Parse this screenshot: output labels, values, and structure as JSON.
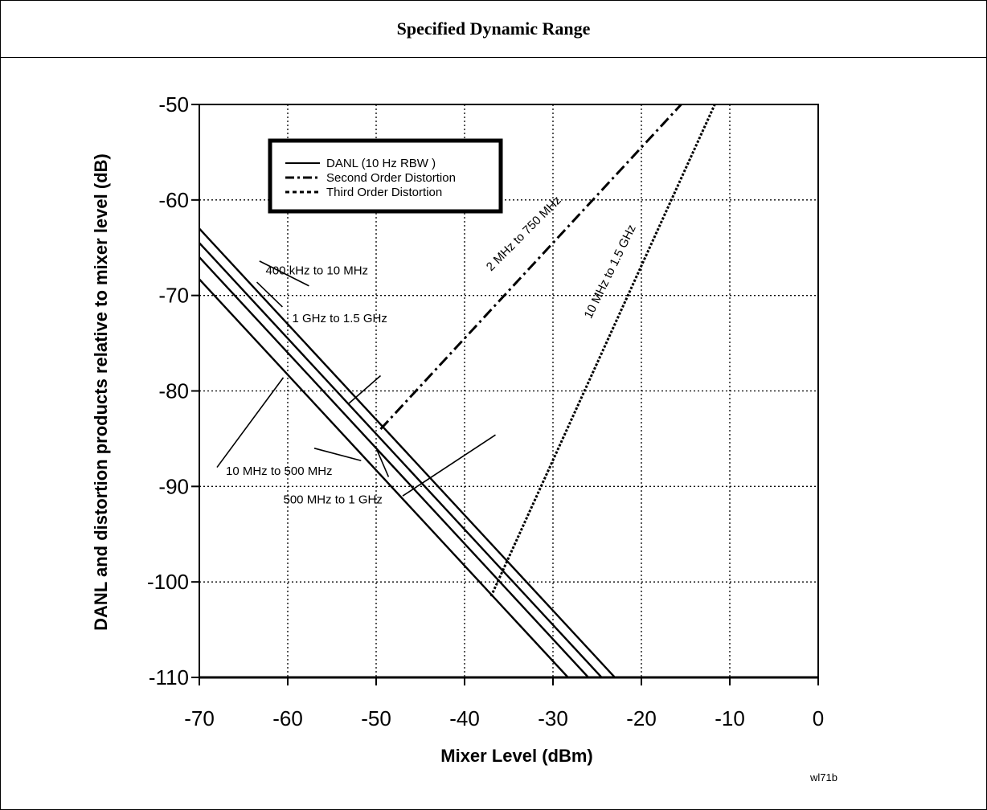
{
  "title": "Specified Dynamic Range",
  "figure_id": "wl71b",
  "chart_data": {
    "type": "line",
    "xlabel": "Mixer Level (dBm)",
    "ylabel": "DANL and distortion products relative to mixer level (dB)",
    "xlim": [
      -70,
      0
    ],
    "ylim": [
      -110,
      -50
    ],
    "xticks": [
      -70,
      -60,
      -50,
      -40,
      -30,
      -20,
      -10,
      0
    ],
    "yticks": [
      -50,
      -60,
      -70,
      -80,
      -90,
      -100,
      -110
    ],
    "grid": true,
    "legend_position": "top-left",
    "legend": [
      {
        "label": "DANL (10 Hz RBW )",
        "style": "solid"
      },
      {
        "label": "Second Order Distortion",
        "style": "dash-dot"
      },
      {
        "label": "Third Order Distortion",
        "style": "dotted"
      }
    ],
    "series": [
      {
        "name": "400 kHz to 10 MHz",
        "kind": "DANL",
        "style": "solid",
        "x": [
          -70,
          -23
        ],
        "y": [
          -63,
          -110
        ]
      },
      {
        "name": "1 GHz to 1.5 GHz",
        "kind": "DANL",
        "style": "solid",
        "x": [
          -70,
          -24.5
        ],
        "y": [
          -64.5,
          -110
        ]
      },
      {
        "name": "500 MHz to 1 GHz",
        "kind": "DANL",
        "style": "solid",
        "x": [
          -70,
          -26
        ],
        "y": [
          -66,
          -110
        ]
      },
      {
        "name": "10 MHz to 500 MHz",
        "kind": "DANL",
        "style": "solid",
        "x": [
          -70,
          -28.3
        ],
        "y": [
          -68.3,
          -110
        ]
      },
      {
        "name": "2 MHz to 750 MHz",
        "kind": "Second Order Distortion",
        "style": "dash-dot",
        "x": [
          -49.5,
          -15.5
        ],
        "y": [
          -84,
          -50
        ]
      },
      {
        "name": "10 MHz to 1.5 GHz",
        "kind": "Third Order Distortion",
        "style": "dotted",
        "x": [
          -37,
          -11.7
        ],
        "y": [
          -101.5,
          -50
        ]
      }
    ],
    "annotations": [
      {
        "text": "400 kHz to 10 MHz",
        "x": -62.5,
        "y": -67.8
      },
      {
        "text": "1 GHz to 1.5 GHz",
        "x": -59.5,
        "y": -72.8
      },
      {
        "text": "10 MHz to 500 MHz",
        "x": -67,
        "y": -88.8
      },
      {
        "text": "500 MHz to 1 GHz",
        "x": -60.5,
        "y": -91.8
      },
      {
        "text": "2 MHz to 750 MHz",
        "x": -37,
        "y": -67.5,
        "angle": -45
      },
      {
        "text": "10 MHz to 1.5 GHz",
        "x": -25.7,
        "y": -72.5,
        "angle": -64
      }
    ]
  }
}
